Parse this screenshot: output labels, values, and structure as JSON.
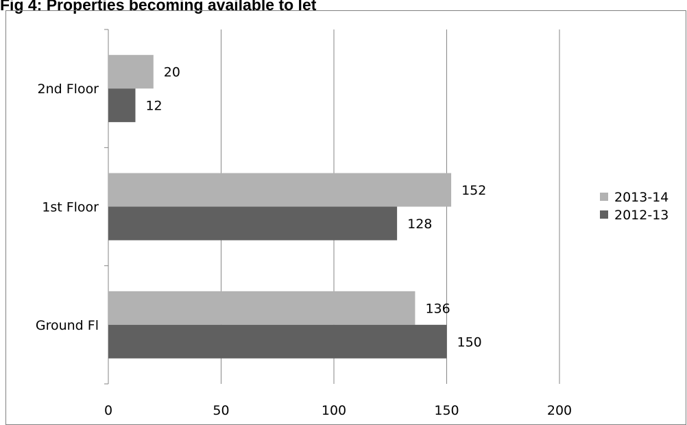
{
  "chart_data": {
    "type": "bar",
    "orientation": "horizontal",
    "title": "Fig 4: Properties becoming available to let",
    "categories": [
      "Ground Fl",
      "1st Floor",
      "2nd Floor"
    ],
    "series": [
      {
        "name": "2013-14",
        "values": [
          136,
          152,
          20
        ],
        "color": "#b2b2b2"
      },
      {
        "name": "2012-13",
        "values": [
          150,
          128,
          12
        ],
        "color": "#606060"
      }
    ],
    "xlim": [
      0,
      200
    ],
    "xticks": [
      0,
      50,
      100,
      150,
      200
    ],
    "grid": true,
    "legend_position": "right"
  }
}
